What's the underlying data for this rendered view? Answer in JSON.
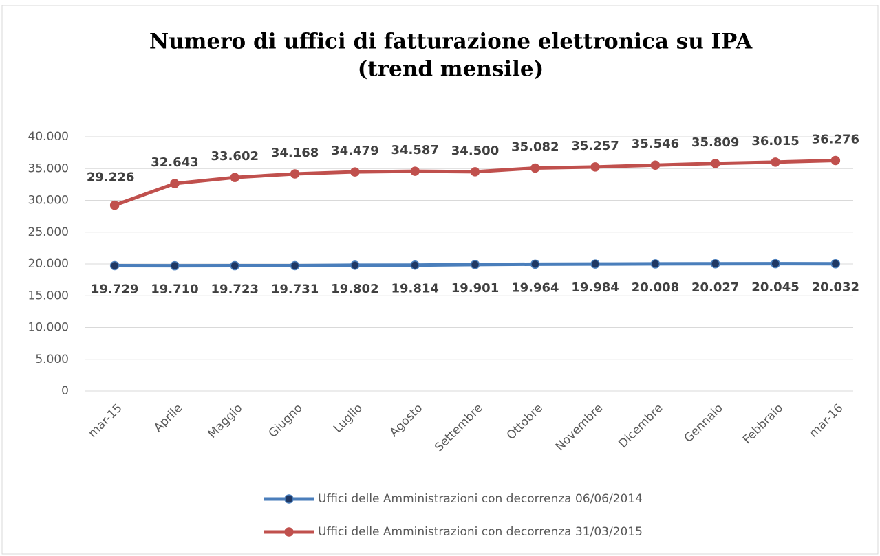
{
  "chart_data": {
    "type": "line",
    "title": "Numero di uffici di fatturazione elettronica su IPA",
    "subtitle": "(trend mensile)",
    "categories": [
      "mar-15",
      "Aprile",
      "Maggio",
      "Giugno",
      "Luglio",
      "Agosto",
      "Settembre",
      "Ottobre",
      "Novembre",
      "Dicembre",
      "Gennaio",
      "Febbraio",
      "mar-16"
    ],
    "series": [
      {
        "name": "Uffici delle Amministrazioni con decorrenza 06/06/2014",
        "color": "#4a7ebb",
        "marker_color": "#1f3864",
        "values": [
          19729,
          19710,
          19723,
          19731,
          19802,
          19814,
          19901,
          19964,
          19984,
          20008,
          20027,
          20045,
          20032
        ],
        "value_labels": [
          "19.729",
          "19.710",
          "19.723",
          "19.731",
          "19.802",
          "19.814",
          "19.901",
          "19.964",
          "19.984",
          "20.008",
          "20.027",
          "20.045",
          "20.032"
        ]
      },
      {
        "name": "Uffici delle Amministrazioni con decorrenza 31/03/2015",
        "color": "#c0504d",
        "marker_color": "#c0504d",
        "values": [
          29226,
          32643,
          33602,
          34168,
          34479,
          34587,
          34500,
          35082,
          35257,
          35546,
          35809,
          36015,
          36276
        ],
        "value_labels": [
          "29.226",
          "32.643",
          "33.602",
          "34.168",
          "34.479",
          "34.587",
          "34.500",
          "35.082",
          "35.257",
          "35.546",
          "35.809",
          "36.015",
          "36.276"
        ]
      }
    ],
    "ylim": [
      0,
      40000
    ],
    "yticks": [
      0,
      {
        "value": 5000,
        "label": "5.000"
      },
      {
        "value": 10000,
        "label": "10.000"
      },
      {
        "value": 15000,
        "label": "15.000"
      },
      {
        "value": 20000,
        "label": "20.000"
      },
      {
        "value": 25000,
        "label": "25.000"
      },
      {
        "value": 30000,
        "label": "30.000"
      },
      {
        "value": 35000,
        "label": "35.000"
      },
      {
        "value": 40000,
        "label": "40.000"
      }
    ],
    "grid": true,
    "legend": "bottom"
  }
}
